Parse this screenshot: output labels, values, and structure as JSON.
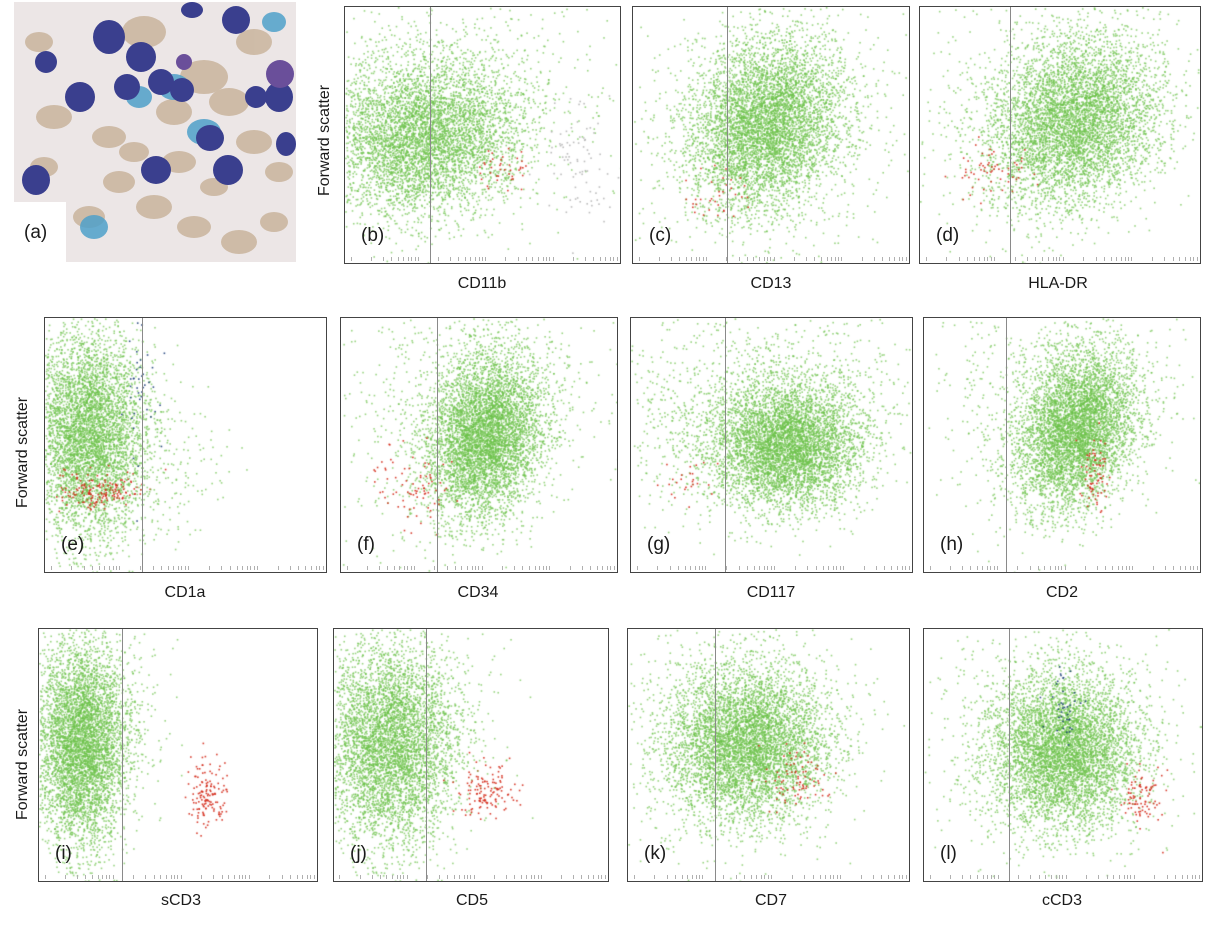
{
  "panel_a_label": "(a)",
  "ylabel": "Forward scatter",
  "colors": {
    "blast": "#6cc24a",
    "tcell": "#d42a1a",
    "other": "#1d3f7a",
    "grey": "#b5b5b5"
  },
  "chart_data": [
    {
      "type": "scatter",
      "label": "(b)",
      "xlabel": "CD11b",
      "ylabel": "Forward scatter",
      "grid": false
    },
    {
      "type": "scatter",
      "label": "(c)",
      "xlabel": "CD13",
      "ylabel": "",
      "grid": false
    },
    {
      "type": "scatter",
      "label": "(d)",
      "xlabel": "HLA-DR",
      "ylabel": "",
      "grid": false
    },
    {
      "type": "scatter",
      "label": "(e)",
      "xlabel": "CD1a",
      "ylabel": "Forward scatter",
      "grid": false
    },
    {
      "type": "scatter",
      "label": "(f)",
      "xlabel": "CD34",
      "ylabel": "",
      "grid": false
    },
    {
      "type": "scatter",
      "label": "(g)",
      "xlabel": "CD117",
      "ylabel": "",
      "grid": false
    },
    {
      "type": "scatter",
      "label": "(h)",
      "xlabel": "CD2",
      "ylabel": "",
      "grid": false
    },
    {
      "type": "scatter",
      "label": "(i)",
      "xlabel": "sCD3",
      "ylabel": "Forward scatter",
      "grid": false
    },
    {
      "type": "scatter",
      "label": "(j)",
      "xlabel": "CD5",
      "ylabel": "",
      "grid": false
    },
    {
      "type": "scatter",
      "label": "(k)",
      "xlabel": "CD7",
      "ylabel": "",
      "grid": false
    },
    {
      "type": "scatter",
      "label": "(l)",
      "xlabel": "cCD3",
      "ylabel": "",
      "grid": false
    }
  ]
}
